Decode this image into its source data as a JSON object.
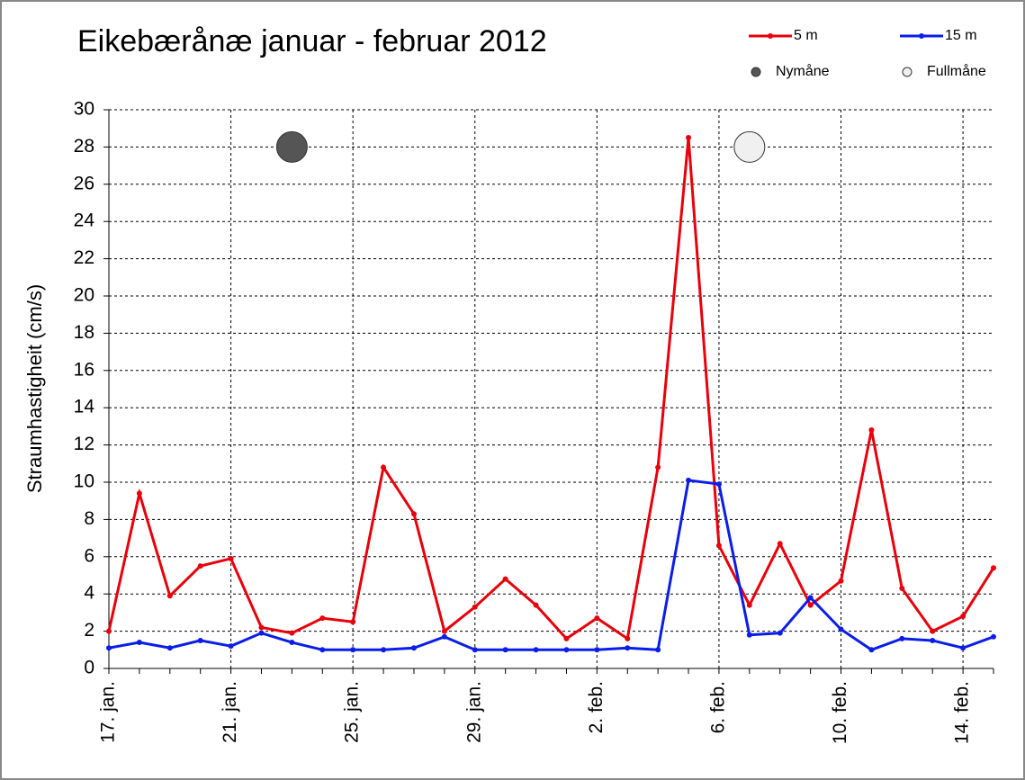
{
  "chart_data": {
    "type": "line",
    "title": "Eikebærånæ januar - februar 2012",
    "y_label": "Straumhastigheit (cm/s)",
    "categories": [
      "17. jan.",
      null,
      null,
      null,
      "21. jan.",
      null,
      null,
      null,
      "25. jan.",
      null,
      null,
      null,
      "29. jan.",
      null,
      null,
      null,
      "2. feb.",
      null,
      null,
      null,
      "6. feb.",
      null,
      null,
      null,
      "10. feb.",
      null,
      null,
      null,
      "14. feb.",
      null
    ],
    "series": [
      {
        "name": "5 m",
        "type": "line",
        "color": "#e8000b",
        "values": [
          2.0,
          9.4,
          3.9,
          5.5,
          5.9,
          2.2,
          1.9,
          2.7,
          2.5,
          10.8,
          8.3,
          2.0,
          3.3,
          4.8,
          3.4,
          1.6,
          2.7,
          1.6,
          10.8,
          28.5,
          6.6,
          3.4,
          6.7,
          3.4,
          4.7,
          12.8,
          4.3,
          2.0,
          2.8,
          5.4
        ]
      },
      {
        "name": "15 m",
        "type": "line",
        "color": "#0a1ee8",
        "values": [
          1.1,
          1.4,
          1.1,
          1.5,
          1.2,
          1.9,
          1.4,
          1.0,
          1.0,
          1.0,
          1.1,
          1.7,
          1.0,
          1.0,
          1.0,
          1.0,
          1.0,
          1.1,
          1.0,
          10.1,
          9.9,
          1.8,
          1.9,
          3.8,
          2.1,
          1.0,
          1.6,
          1.5,
          1.1,
          1.7
        ]
      },
      {
        "name": "Nymåne",
        "type": "scatter",
        "color": "#555555",
        "values": [
          null,
          null,
          null,
          null,
          null,
          null,
          28,
          null,
          null,
          null,
          null,
          null,
          null,
          null,
          null,
          null,
          null,
          null,
          null,
          null,
          null,
          null,
          null,
          null,
          null,
          null,
          null,
          null,
          null,
          null
        ]
      },
      {
        "name": "Fullmåne",
        "type": "scatter",
        "color": "#f0f0f0",
        "values": [
          null,
          null,
          null,
          null,
          null,
          null,
          null,
          null,
          null,
          null,
          null,
          null,
          null,
          null,
          null,
          null,
          null,
          null,
          null,
          null,
          null,
          28,
          null,
          null,
          null,
          null,
          null,
          null,
          null,
          null
        ]
      }
    ],
    "ylim": [
      0,
      30
    ],
    "yticks": [
      0,
      2,
      4,
      6,
      8,
      10,
      12,
      14,
      16,
      18,
      20,
      22,
      24,
      26,
      28,
      30
    ],
    "grid": true
  }
}
